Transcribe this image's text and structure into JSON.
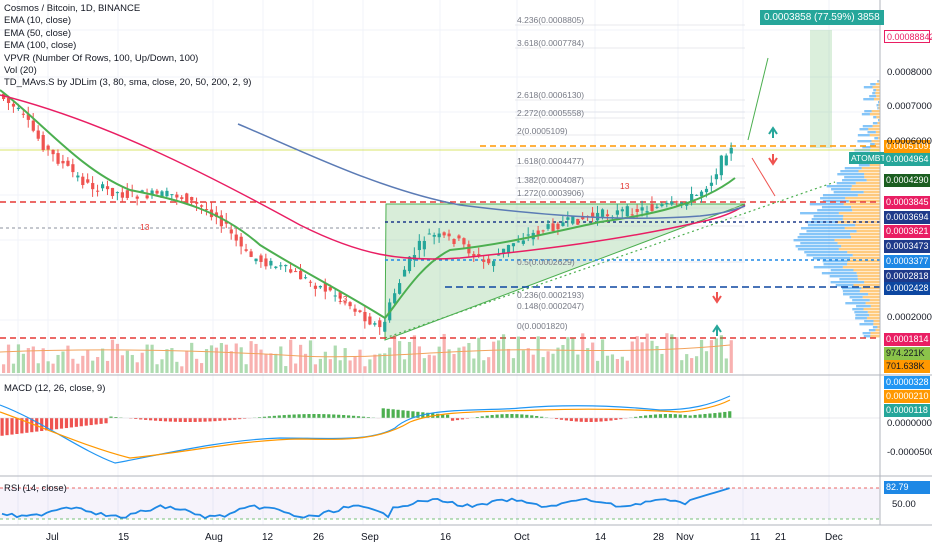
{
  "legend": {
    "title": "Cosmos / Bitcoin, 1D, BINANCE",
    "lines": [
      "EMA (10, close)",
      "EMA (50, close)",
      "EMA (100, close)",
      "VPVR (Number Of Rows, 100, Up/Down, 100)",
      "Vol (20)",
      "TD_MAvs.S by JDLim (3, 80, sma, close, 20, 50, 200, 2, 9)"
    ]
  },
  "top_box": {
    "label": "0.0003858 (77.59%) 3858",
    "color": "#4caf50"
  },
  "symbol_tag": "ATOMBTC",
  "price_tags": [
    {
      "text": "0.00088842",
      "bg": "#ffffff",
      "fg": "#e91e63",
      "border": "#e91e63"
    },
    {
      "text": "0.00051091",
      "bg": "#ff9800",
      "fg": "#ffffff"
    },
    {
      "text": "0.0004964",
      "bg": "#26a69a",
      "fg": "#ffffff"
    },
    {
      "text": "0.0004290",
      "bg": "#1b5e20",
      "fg": "#ffffff"
    },
    {
      "text": "0.0003845",
      "bg": "#e91e63",
      "fg": "#ffffff"
    },
    {
      "text": "0.0003694",
      "bg": "#1e3a8a",
      "fg": "#ffffff"
    },
    {
      "text": "0.0003621",
      "bg": "#e91e63",
      "fg": "#ffffff"
    },
    {
      "text": "0.0003473",
      "bg": "#1e3a8a",
      "fg": "#ffffff"
    },
    {
      "text": "0.0003377",
      "bg": "#1e88e5",
      "fg": "#ffffff"
    },
    {
      "text": "0.0002818",
      "bg": "#1e3a8a",
      "fg": "#ffffff"
    },
    {
      "text": "0.0002428",
      "bg": "#0d47a1",
      "fg": "#ffffff"
    },
    {
      "text": "0.0001814",
      "bg": "#e91e63",
      "fg": "#ffffff"
    },
    {
      "text": "974.221K",
      "bg": "#8bc34a",
      "fg": "#131722"
    },
    {
      "text": "701.638K",
      "bg": "#ff9800",
      "fg": "#131722"
    }
  ],
  "price_axis_labels": [
    "0.0008000",
    "0.0007000",
    "0.0006000",
    "0.0002000"
  ],
  "macd": {
    "title": "MACD (12, 26, close, 9)",
    "tags": [
      {
        "text": "0.0000328",
        "bg": "#2196f3",
        "fg": "#ffffff"
      },
      {
        "text": "0.0000210",
        "bg": "#ff9800",
        "fg": "#ffffff"
      },
      {
        "text": "0.0000118",
        "bg": "#26a69a",
        "fg": "#ffffff"
      }
    ],
    "axis_labels": [
      "0.0000000",
      "-0.0000500"
    ]
  },
  "rsi": {
    "title": "RSI (14, close)",
    "value": "82.79",
    "axis_labels": [
      "50.00"
    ]
  },
  "x_labels": [
    "Jul",
    "15",
    "Aug",
    "12",
    "26",
    "Sep",
    "16",
    "Oct",
    "14",
    "28",
    "Nov",
    "11",
    "21",
    "Dec"
  ],
  "fib_levels": [
    "4.236(0.0008805)",
    "3.618(0.0007784)",
    "2.618(0.0006130)",
    "2.272(0.0005558)",
    "2(0.0005109)",
    "1.618(0.0004477)",
    "1.382(0.0004087)",
    "1.272(0.0003906)",
    "0.5(0.0002629)",
    "0.236(0.0002193)",
    "0.148(0.0002047)",
    "0(0.0001820)"
  ],
  "td_labels": [
    "13",
    "13",
    "13"
  ],
  "colors": {
    "up": "#26a69a",
    "down": "#ef5350",
    "ema10": "#4caf50",
    "ema50": "#e91e63",
    "ema100": "#5b7bb5",
    "macd": "#2196f3",
    "signal": "#ff9800",
    "rsi": "#1e88e5"
  }
}
